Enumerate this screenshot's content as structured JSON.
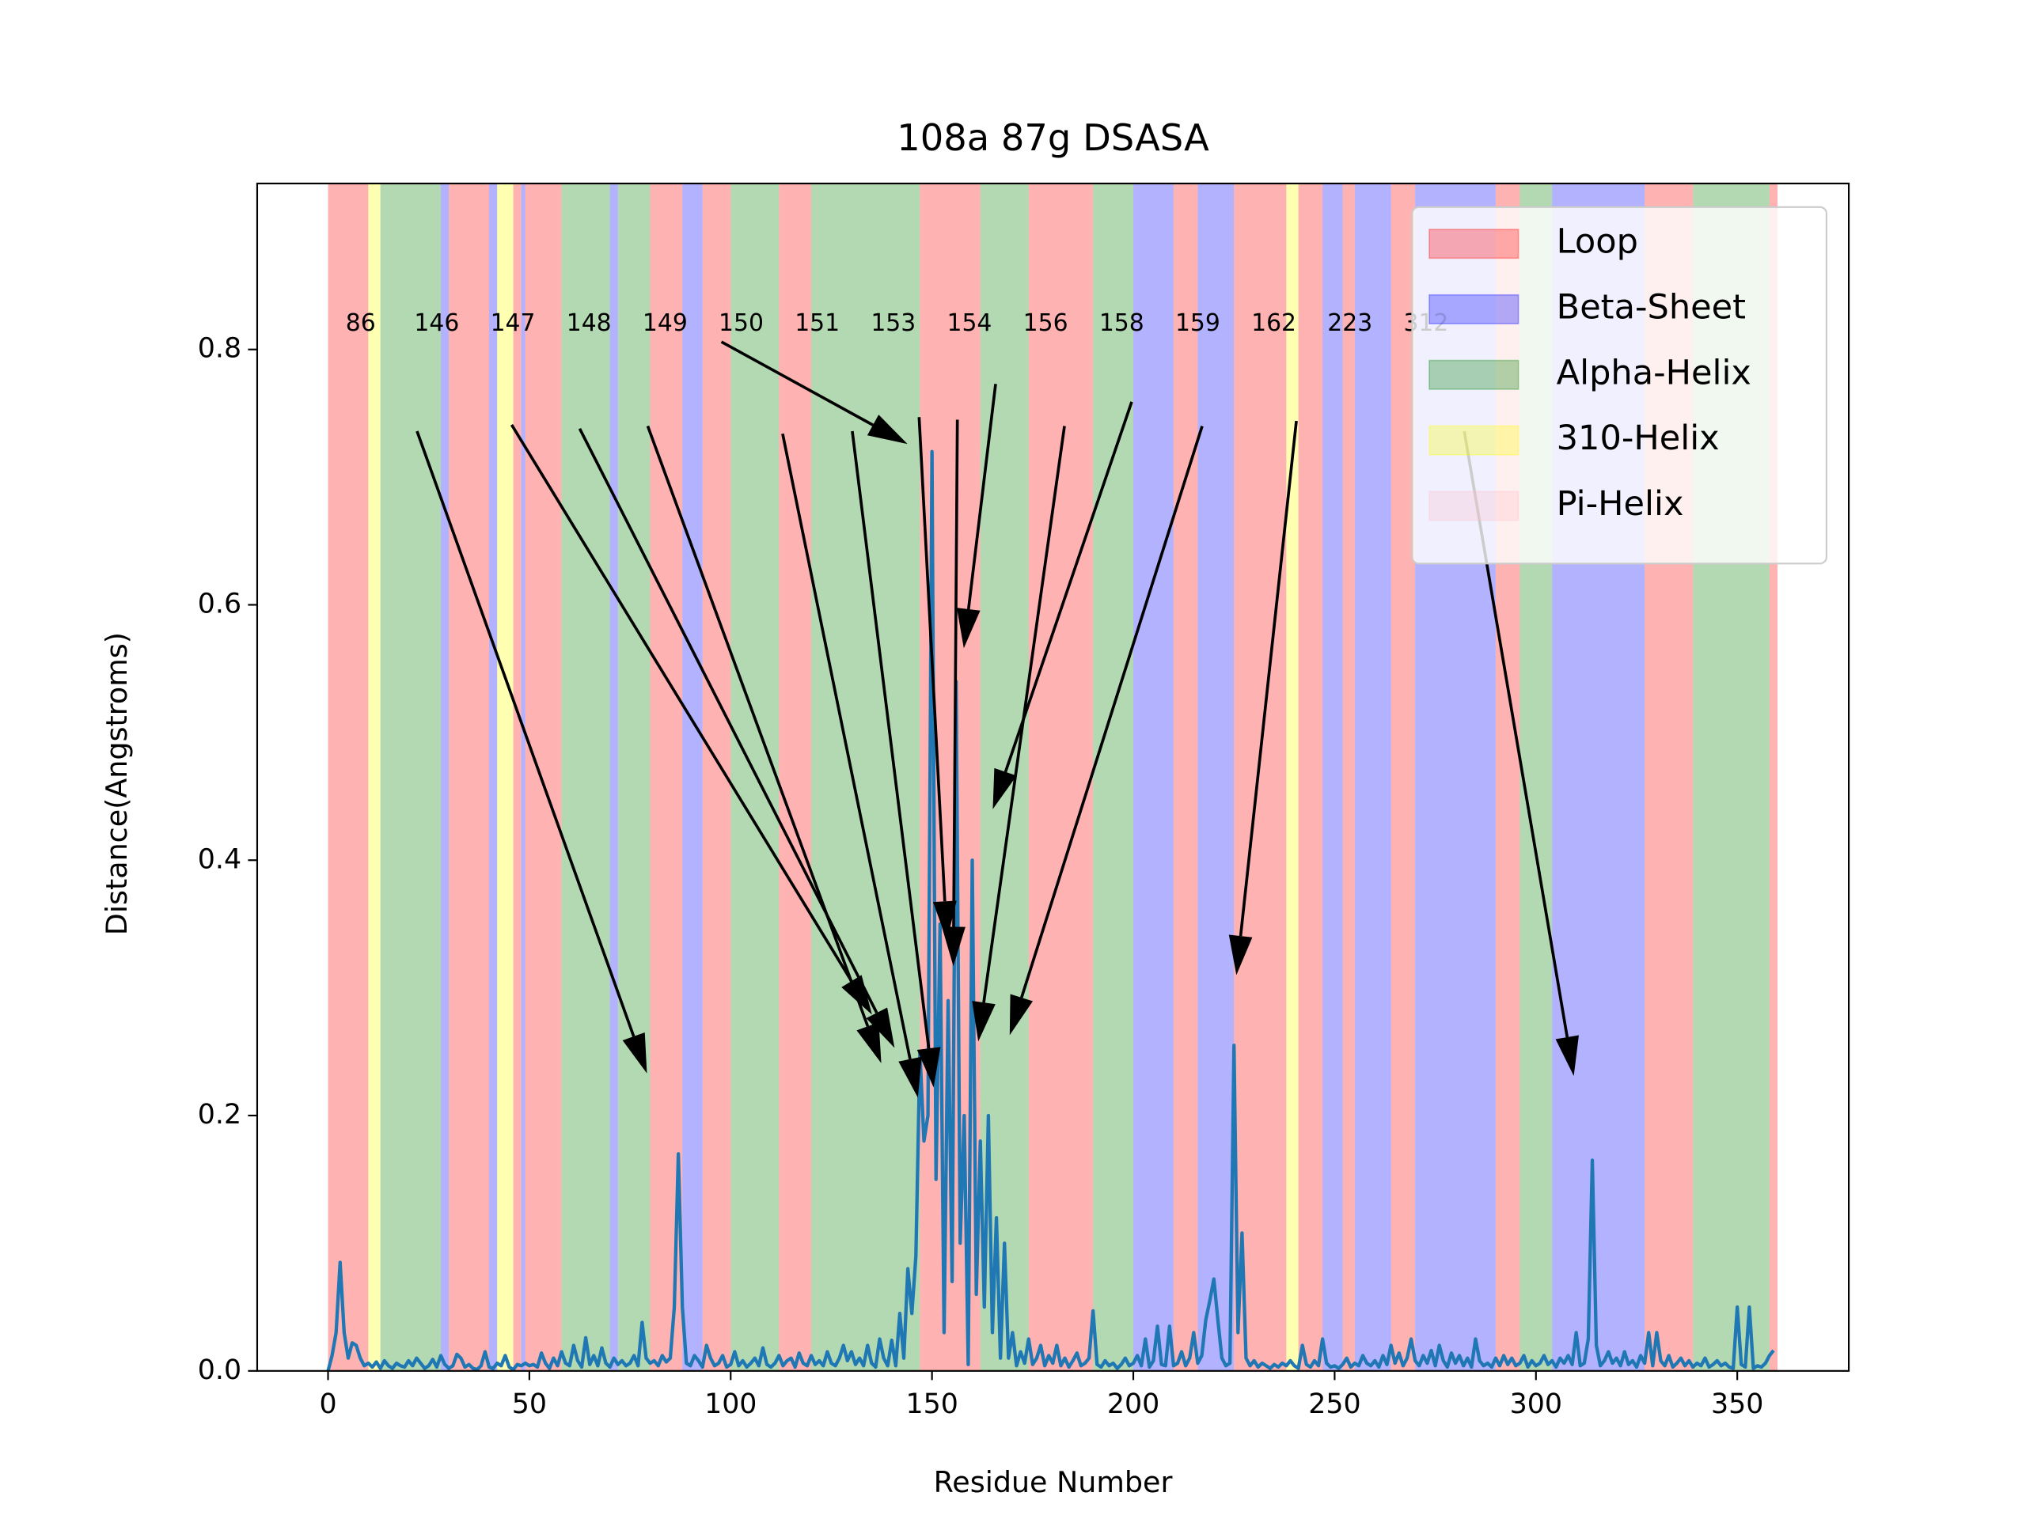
{
  "chart_data": {
    "type": "line",
    "title": "108a 87g DSASA",
    "xlabel": "Residue Number",
    "ylabel": "Distance(Angstroms)",
    "xlim": [
      -17.6,
      377.7
    ],
    "ylim": [
      0,
      0.93
    ],
    "xticks": [
      0,
      50,
      100,
      150,
      200,
      250,
      300,
      350
    ],
    "yticks": [
      {
        "value": 0,
        "label": "0.0"
      },
      0.2,
      0.4,
      0.6,
      0.8
    ],
    "legend_loc": "upper right",
    "structures": [
      {
        "name": "Loop",
        "color": "#ff0000"
      },
      {
        "name": "Beta-Sheet",
        "color": "#0000ff"
      },
      {
        "name": "Alpha-Helix",
        "color": "#008000"
      },
      {
        "name": "310-Helix",
        "color": "#ffff00"
      },
      {
        "name": "Pi-Helix",
        "color": "#ffc0cb"
      }
    ],
    "structure_opacity": 0.3,
    "regions": [
      [
        0,
        10,
        0
      ],
      [
        10,
        13,
        3
      ],
      [
        13,
        28,
        2
      ],
      [
        28,
        30,
        1
      ],
      [
        30,
        40,
        0
      ],
      [
        40,
        42,
        1
      ],
      [
        42,
        46,
        3
      ],
      [
        46,
        48,
        0
      ],
      [
        48,
        49,
        1
      ],
      [
        49,
        58,
        0
      ],
      [
        58,
        70,
        2
      ],
      [
        70,
        72,
        1
      ],
      [
        72,
        80,
        2
      ],
      [
        80,
        88,
        0
      ],
      [
        88,
        93,
        1
      ],
      [
        93,
        100,
        0
      ],
      [
        100,
        112,
        2
      ],
      [
        112,
        120,
        0
      ],
      [
        120,
        147,
        2
      ],
      [
        147,
        162,
        0
      ],
      [
        162,
        174,
        2
      ],
      [
        174,
        190,
        0
      ],
      [
        190,
        200,
        2
      ],
      [
        200,
        210,
        1
      ],
      [
        210,
        216,
        0
      ],
      [
        216,
        225,
        1
      ],
      [
        225,
        238,
        0
      ],
      [
        238,
        241,
        3
      ],
      [
        241,
        247,
        0
      ],
      [
        247,
        252,
        1
      ],
      [
        252,
        255,
        0
      ],
      [
        255,
        264,
        1
      ],
      [
        264,
        270,
        0
      ],
      [
        270,
        290,
        1
      ],
      [
        290,
        296,
        0
      ],
      [
        296,
        304,
        2
      ],
      [
        304,
        327,
        1
      ],
      [
        327,
        339,
        0
      ],
      [
        339,
        358,
        2
      ],
      [
        358,
        360,
        0
      ]
    ],
    "series": [
      {
        "color": "#1f77b4",
        "x": [
          0,
          1,
          2,
          3,
          4,
          5,
          6,
          7,
          8,
          9,
          10,
          11,
          12,
          13,
          14,
          15,
          16,
          17,
          18,
          19,
          20,
          21,
          22,
          23,
          24,
          25,
          26,
          27,
          28,
          29,
          30,
          31,
          32,
          33,
          34,
          35,
          36,
          37,
          38,
          39,
          40,
          41,
          42,
          43,
          44,
          45,
          46,
          47,
          48,
          49,
          50,
          51,
          52,
          53,
          54,
          55,
          56,
          57,
          58,
          59,
          60,
          61,
          62,
          63,
          64,
          65,
          66,
          67,
          68,
          69,
          70,
          71,
          72,
          73,
          74,
          75,
          76,
          77,
          78,
          79,
          80,
          81,
          82,
          83,
          84,
          85,
          86,
          87,
          88,
          89,
          90,
          91,
          92,
          93,
          94,
          95,
          96,
          97,
          98,
          99,
          100,
          101,
          102,
          103,
          104,
          105,
          106,
          107,
          108,
          109,
          110,
          111,
          112,
          113,
          114,
          115,
          116,
          117,
          118,
          119,
          120,
          121,
          122,
          123,
          124,
          125,
          126,
          127,
          128,
          129,
          130,
          131,
          132,
          133,
          134,
          135,
          136,
          137,
          138,
          139,
          140,
          141,
          142,
          143,
          144,
          145,
          146,
          147,
          148,
          149,
          150,
          151,
          152,
          153,
          154,
          155,
          156,
          157,
          158,
          159,
          160,
          161,
          162,
          163,
          164,
          165,
          166,
          167,
          168,
          169,
          170,
          171,
          172,
          173,
          174,
          175,
          176,
          177,
          178,
          179,
          180,
          181,
          182,
          183,
          184,
          185,
          186,
          187,
          188,
          189,
          190,
          191,
          192,
          193,
          194,
          195,
          196,
          197,
          198,
          199,
          200,
          201,
          202,
          203,
          204,
          205,
          206,
          207,
          208,
          209,
          210,
          211,
          212,
          213,
          214,
          215,
          216,
          217,
          218,
          219,
          220,
          221,
          222,
          223,
          224,
          225,
          226,
          227,
          228,
          229,
          230,
          231,
          232,
          233,
          234,
          235,
          236,
          237,
          238,
          239,
          240,
          241,
          242,
          243,
          244,
          245,
          246,
          247,
          248,
          249,
          250,
          251,
          252,
          253,
          254,
          255,
          256,
          257,
          258,
          259,
          260,
          261,
          262,
          263,
          264,
          265,
          266,
          267,
          268,
          269,
          270,
          271,
          272,
          273,
          274,
          275,
          276,
          277,
          278,
          279,
          280,
          281,
          282,
          283,
          284,
          285,
          286,
          287,
          288,
          289,
          290,
          291,
          292,
          293,
          294,
          295,
          296,
          297,
          298,
          299,
          300,
          301,
          302,
          303,
          304,
          305,
          306,
          307,
          308,
          309,
          310,
          311,
          312,
          313,
          314,
          315,
          316,
          317,
          318,
          319,
          320,
          321,
          322,
          323,
          324,
          325,
          326,
          327,
          328,
          329,
          330,
          331,
          332,
          333,
          334,
          335,
          336,
          337,
          338,
          339,
          340,
          341,
          342,
          343,
          344,
          345,
          346,
          347,
          348,
          349,
          350,
          351,
          352,
          353,
          354,
          355,
          356,
          357,
          358,
          359
        ],
        "values": [
          0,
          0.012,
          0.03,
          0.085,
          0.03,
          0.01,
          0.022,
          0.02,
          0.01,
          0.004,
          0.006,
          0.003,
          0.007,
          0.002,
          0.008,
          0.004,
          0.002,
          0.006,
          0.004,
          0.003,
          0.008,
          0.004,
          0.01,
          0.006,
          0.002,
          0.004,
          0.009,
          0.003,
          0.012,
          0.005,
          0.002,
          0.004,
          0.013,
          0.01,
          0.003,
          0.005,
          0.002,
          0.001,
          0.004,
          0.015,
          0.003,
          0.002,
          0.006,
          0.004,
          0.012,
          0.003,
          0.001,
          0.005,
          0.004,
          0.006,
          0.004,
          0.005,
          0.003,
          0.014,
          0.006,
          0.002,
          0.01,
          0.004,
          0.015,
          0.006,
          0.004,
          0.02,
          0.008,
          0.003,
          0.026,
          0.005,
          0.012,
          0.004,
          0.018,
          0.006,
          0.003,
          0.01,
          0.005,
          0.008,
          0.004,
          0.006,
          0.012,
          0.004,
          0.038,
          0.01,
          0.006,
          0.008,
          0.004,
          0.012,
          0.007,
          0.01,
          0.05,
          0.17,
          0.05,
          0.006,
          0.004,
          0.012,
          0.008,
          0.003,
          0.02,
          0.01,
          0.004,
          0.006,
          0.012,
          0.003,
          0.005,
          0.015,
          0.004,
          0.008,
          0.003,
          0.006,
          0.01,
          0.004,
          0.018,
          0.005,
          0.003,
          0.006,
          0.012,
          0.004,
          0.008,
          0.01,
          0.003,
          0.014,
          0.006,
          0.004,
          0.012,
          0.005,
          0.008,
          0.004,
          0.015,
          0.006,
          0.004,
          0.01,
          0.02,
          0.008,
          0.015,
          0.005,
          0.01,
          0.004,
          0.02,
          0.006,
          0.003,
          0.025,
          0.01,
          0.004,
          0.024,
          0.004,
          0.045,
          0.01,
          0.08,
          0.045,
          0.09,
          0.25,
          0.18,
          0.2,
          0.72,
          0.15,
          0.35,
          0.03,
          0.29,
          0.07,
          0.54,
          0.1,
          0.2,
          0.005,
          0.4,
          0.06,
          0.18,
          0.05,
          0.2,
          0.03,
          0.12,
          0.01,
          0.1,
          0.01,
          0.03,
          0.004,
          0.015,
          0.006,
          0.025,
          0.005,
          0.01,
          0.02,
          0.004,
          0.012,
          0.006,
          0.02,
          0.004,
          0.01,
          0.003,
          0.008,
          0.014,
          0.004,
          0.006,
          0.01,
          0.047,
          0.005,
          0.003,
          0.008,
          0.004,
          0.006,
          0.002,
          0.005,
          0.01,
          0.004,
          0.006,
          0.012,
          0.004,
          0.025,
          0.003,
          0.008,
          0.035,
          0.005,
          0.004,
          0.035,
          0.004,
          0.006,
          0.015,
          0.004,
          0.01,
          0.03,
          0.006,
          0.012,
          0.04,
          0.055,
          0.072,
          0.04,
          0.01,
          0.004,
          0.006,
          0.255,
          0.03,
          0.108,
          0.01,
          0.004,
          0.008,
          0.003,
          0.006,
          0.004,
          0.002,
          0.005,
          0.003,
          0.006,
          0.004,
          0.008,
          0.004,
          0.002,
          0.02,
          0.005,
          0.003,
          0.008,
          0.004,
          0.025,
          0.006,
          0.003,
          0.004,
          0.002,
          0.005,
          0.01,
          0.003,
          0.006,
          0.004,
          0.012,
          0.006,
          0.004,
          0.008,
          0.003,
          0.012,
          0.005,
          0.02,
          0.006,
          0.014,
          0.004,
          0.01,
          0.025,
          0.008,
          0.004,
          0.012,
          0.006,
          0.016,
          0.004,
          0.02,
          0.008,
          0.003,
          0.014,
          0.006,
          0.012,
          0.004,
          0.01,
          0.003,
          0.025,
          0.008,
          0.004,
          0.006,
          0.003,
          0.01,
          0.004,
          0.012,
          0.005,
          0.01,
          0.004,
          0.006,
          0.012,
          0.003,
          0.008,
          0.004,
          0.006,
          0.012,
          0.005,
          0.008,
          0.003,
          0.01,
          0.006,
          0.012,
          0.005,
          0.03,
          0.004,
          0.006,
          0.025,
          0.165,
          0.02,
          0.004,
          0.008,
          0.015,
          0.006,
          0.01,
          0.004,
          0.015,
          0.005,
          0.008,
          0.003,
          0.012,
          0.006,
          0.03,
          0.004,
          0.03,
          0.008,
          0.004,
          0.012,
          0.003,
          0.006,
          0.01,
          0.004,
          0.008,
          0.003,
          0.006,
          0.004,
          0.01,
          0.003,
          0.005,
          0.008,
          0.004,
          0.006,
          0.003,
          0.002,
          0.05,
          0.005,
          0.003,
          0.05,
          0.002,
          0.004,
          0.003,
          0.006,
          0.012,
          0.016
        ]
      }
    ],
    "annotations": [
      {
        "text": "86",
        "text_xy": [
          8.1,
          0.82
        ],
        "tail": [
          22.1,
          0.736
        ],
        "xy": [
          79.2,
          0.233
        ]
      },
      {
        "text": "146",
        "text_xy": [
          27,
          0.82
        ],
        "tail": [
          45.6,
          0.741
        ],
        "xy": [
          135.1,
          0.279
        ]
      },
      {
        "text": "147",
        "text_xy": [
          45.9,
          0.82
        ],
        "tail": [
          62.5,
          0.738
        ],
        "xy": [
          140.7,
          0.253
        ]
      },
      {
        "text": "148",
        "text_xy": [
          64.8,
          0.82
        ],
        "tail": [
          79.4,
          0.74
        ],
        "xy": [
          137.4,
          0.241
        ]
      },
      {
        "text": "149",
        "text_xy": [
          83.7,
          0.82
        ],
        "tail": [
          97.7,
          0.806
        ],
        "xy": [
          143.9,
          0.726
        ]
      },
      {
        "text": "150",
        "text_xy": [
          102.6,
          0.82
        ],
        "tail": [
          112.9,
          0.734
        ],
        "xy": [
          146.5,
          0.214
        ]
      },
      {
        "text": "151",
        "text_xy": [
          121.5,
          0.82
        ],
        "tail": [
          130.2,
          0.736
        ],
        "xy": [
          150.4,
          0.222
        ]
      },
      {
        "text": "153",
        "text_xy": [
          140.4,
          0.82
        ],
        "tail": [
          146.8,
          0.747
        ],
        "xy": [
          153.7,
          0.337
        ]
      },
      {
        "text": "154",
        "text_xy": [
          159.3,
          0.82
        ],
        "tail": [
          156.3,
          0.745
        ],
        "xy": [
          155.3,
          0.317
        ]
      },
      {
        "text": "156",
        "text_xy": [
          178.2,
          0.82
        ],
        "tail": [
          165.8,
          0.773
        ],
        "xy": [
          157.9,
          0.566
        ]
      },
      {
        "text": "158",
        "text_xy": [
          197.1,
          0.82
        ],
        "tail": [
          182.9,
          0.74
        ],
        "xy": [
          161.5,
          0.258
        ]
      },
      {
        "text": "159",
        "text_xy": [
          216,
          0.82
        ],
        "tail": [
          199.6,
          0.759
        ],
        "xy": [
          165.1,
          0.44
        ]
      },
      {
        "text": "162",
        "text_xy": [
          234.9,
          0.82
        ],
        "tail": [
          217.1,
          0.74
        ],
        "xy": [
          169.3,
          0.263
        ]
      },
      {
        "text": "223",
        "text_xy": [
          253.8,
          0.82
        ],
        "tail": [
          240.5,
          0.744
        ],
        "xy": [
          225.6,
          0.31
        ]
      },
      {
        "text": "312",
        "text_xy": [
          272.7,
          0.82
        ],
        "tail": [
          282.2,
          0.736
        ],
        "xy": [
          309.4,
          0.231
        ]
      }
    ]
  }
}
